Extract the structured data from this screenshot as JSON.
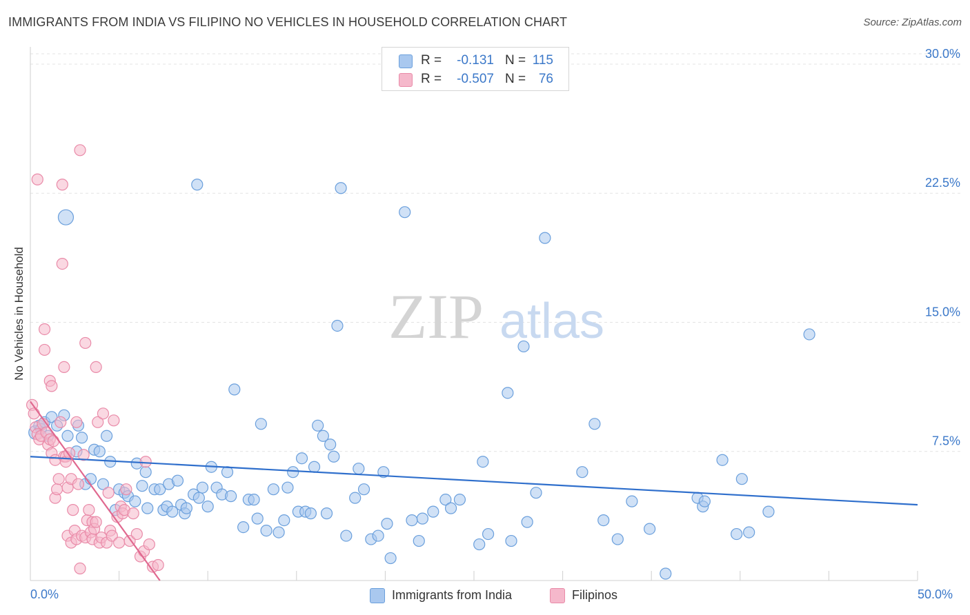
{
  "chart_data": {
    "type": "scatter",
    "title": "IMMIGRANTS FROM INDIA VS FILIPINO NO VEHICLES IN HOUSEHOLD CORRELATION CHART",
    "source": "Source: ZipAtlas.com",
    "ylabel": "No Vehicles in Household",
    "xlabel": "",
    "xlim": [
      0,
      50
    ],
    "ylim": [
      0,
      31
    ],
    "x_tick_labels": {
      "left": "0.0%",
      "right": "50.0%"
    },
    "y_ticks": [
      {
        "value": 7.5,
        "label": "7.5%"
      },
      {
        "value": 15.0,
        "label": "15.0%"
      },
      {
        "value": 22.5,
        "label": "22.5%"
      },
      {
        "value": 30.0,
        "label": "30.0%"
      }
    ],
    "watermark": {
      "part1": "ZIP",
      "part2": "atlas"
    },
    "legend": {
      "r_label": "R =",
      "n_label": "N =",
      "entries": [
        {
          "name": "Immigrants from India",
          "r": "-0.131",
          "n": "115",
          "fill": "#a9c8ef",
          "stroke": "#6a9fdc"
        },
        {
          "name": "Filipinos",
          "r": "-0.507",
          "n": "76",
          "fill": "#f5b8cb",
          "stroke": "#e98aa8"
        }
      ]
    },
    "series": [
      {
        "name": "Immigrants from India",
        "color": "#6a9fdc",
        "fill": "#a9c8ef",
        "trend": {
          "x0": 0,
          "y0": 7.2,
          "x1": 50,
          "y1": 4.4,
          "color": "#2f6fcc"
        },
        "points": [
          [
            0.3,
            8.6
          ],
          [
            0.5,
            9.0
          ],
          [
            0.6,
            8.8
          ],
          [
            0.8,
            9.2
          ],
          [
            1.0,
            8.4
          ],
          [
            1.2,
            9.5
          ],
          [
            1.5,
            9.0
          ],
          [
            1.9,
            9.6
          ],
          [
            2.1,
            8.4
          ],
          [
            2.6,
            7.5
          ],
          [
            2.7,
            9.0
          ],
          [
            2.9,
            8.3
          ],
          [
            3.1,
            5.6
          ],
          [
            3.4,
            5.9
          ],
          [
            3.6,
            7.6
          ],
          [
            3.9,
            7.5
          ],
          [
            4.1,
            5.6
          ],
          [
            4.3,
            8.4
          ],
          [
            4.5,
            6.9
          ],
          [
            4.8,
            4.1
          ],
          [
            5.0,
            5.3
          ],
          [
            5.3,
            5.1
          ],
          [
            5.5,
            4.9
          ],
          [
            5.9,
            4.6
          ],
          [
            6.0,
            6.8
          ],
          [
            6.3,
            5.5
          ],
          [
            6.5,
            6.3
          ],
          [
            6.6,
            4.2
          ],
          [
            7.0,
            5.3
          ],
          [
            7.3,
            5.3
          ],
          [
            7.5,
            4.1
          ],
          [
            7.7,
            4.3
          ],
          [
            7.8,
            5.6
          ],
          [
            8.0,
            4.0
          ],
          [
            8.3,
            5.8
          ],
          [
            8.5,
            4.4
          ],
          [
            8.7,
            3.9
          ],
          [
            8.8,
            4.2
          ],
          [
            9.2,
            5.0
          ],
          [
            9.5,
            4.8
          ],
          [
            9.7,
            5.4
          ],
          [
            9.4,
            23.0
          ],
          [
            10.0,
            4.3
          ],
          [
            10.2,
            6.6
          ],
          [
            10.5,
            5.4
          ],
          [
            10.8,
            5.0
          ],
          [
            11.1,
            6.3
          ],
          [
            11.3,
            4.9
          ],
          [
            11.5,
            11.1
          ],
          [
            12.0,
            3.1
          ],
          [
            12.3,
            4.7
          ],
          [
            12.6,
            4.7
          ],
          [
            12.8,
            3.6
          ],
          [
            13.0,
            9.1
          ],
          [
            13.3,
            2.9
          ],
          [
            13.7,
            5.3
          ],
          [
            14.0,
            2.8
          ],
          [
            14.3,
            3.5
          ],
          [
            14.5,
            5.4
          ],
          [
            14.8,
            6.3
          ],
          [
            15.1,
            4.0
          ],
          [
            15.3,
            7.1
          ],
          [
            15.5,
            4.0
          ],
          [
            15.8,
            3.9
          ],
          [
            16.0,
            6.6
          ],
          [
            16.2,
            9.0
          ],
          [
            16.5,
            8.4
          ],
          [
            16.7,
            3.9
          ],
          [
            16.9,
            7.9
          ],
          [
            17.1,
            7.2
          ],
          [
            17.3,
            14.8
          ],
          [
            17.5,
            22.8
          ],
          [
            17.8,
            2.6
          ],
          [
            18.3,
            4.8
          ],
          [
            18.5,
            6.5
          ],
          [
            18.8,
            5.3
          ],
          [
            19.2,
            2.4
          ],
          [
            19.6,
            2.6
          ],
          [
            19.9,
            6.3
          ],
          [
            20.1,
            3.3
          ],
          [
            20.3,
            1.3
          ],
          [
            21.1,
            21.4
          ],
          [
            21.5,
            3.5
          ],
          [
            21.9,
            2.3
          ],
          [
            22.1,
            3.6
          ],
          [
            22.7,
            4.0
          ],
          [
            23.4,
            4.7
          ],
          [
            23.7,
            4.2
          ],
          [
            24.2,
            4.7
          ],
          [
            25.3,
            2.1
          ],
          [
            25.5,
            6.9
          ],
          [
            25.8,
            2.7
          ],
          [
            26.9,
            10.9
          ],
          [
            27.1,
            2.3
          ],
          [
            27.8,
            13.6
          ],
          [
            28.0,
            3.4
          ],
          [
            28.5,
            5.1
          ],
          [
            29.0,
            19.9
          ],
          [
            31.1,
            6.3
          ],
          [
            31.8,
            9.1
          ],
          [
            32.3,
            3.5
          ],
          [
            33.1,
            2.4
          ],
          [
            33.9,
            4.6
          ],
          [
            34.9,
            3.0
          ],
          [
            35.8,
            0.4
          ],
          [
            37.6,
            4.8
          ],
          [
            37.9,
            4.3
          ],
          [
            38.0,
            4.6
          ],
          [
            39.0,
            7.0
          ],
          [
            39.8,
            2.7
          ],
          [
            40.1,
            5.9
          ],
          [
            40.5,
            2.8
          ],
          [
            41.6,
            4.0
          ],
          [
            43.9,
            14.3
          ],
          [
            2.0,
            21.1
          ]
        ]
      },
      {
        "name": "Filipinos",
        "color": "#e98aa8",
        "fill": "#f5b8cb",
        "trend": {
          "x0": 0,
          "y0": 10.4,
          "x1": 7.3,
          "y1": 0.0,
          "color": "#e0688f"
        },
        "points": [
          [
            0.1,
            10.2
          ],
          [
            0.2,
            9.7
          ],
          [
            0.3,
            8.9
          ],
          [
            0.4,
            8.5
          ],
          [
            0.4,
            23.3
          ],
          [
            0.5,
            8.2
          ],
          [
            0.6,
            8.4
          ],
          [
            0.7,
            9.1
          ],
          [
            0.8,
            14.6
          ],
          [
            0.8,
            13.4
          ],
          [
            0.9,
            8.6
          ],
          [
            1.0,
            7.9
          ],
          [
            1.1,
            8.2
          ],
          [
            1.1,
            11.6
          ],
          [
            1.2,
            11.3
          ],
          [
            1.2,
            7.4
          ],
          [
            1.3,
            8.1
          ],
          [
            1.4,
            7.0
          ],
          [
            1.4,
            4.8
          ],
          [
            1.5,
            5.3
          ],
          [
            1.6,
            5.9
          ],
          [
            1.7,
            9.2
          ],
          [
            1.8,
            18.4
          ],
          [
            1.8,
            23.0
          ],
          [
            1.9,
            7.2
          ],
          [
            1.9,
            12.4
          ],
          [
            2.0,
            7.2
          ],
          [
            2.0,
            6.9
          ],
          [
            2.1,
            5.4
          ],
          [
            2.1,
            2.6
          ],
          [
            2.2,
            7.4
          ],
          [
            2.3,
            5.9
          ],
          [
            2.3,
            2.2
          ],
          [
            2.4,
            4.1
          ],
          [
            2.5,
            2.9
          ],
          [
            2.6,
            2.4
          ],
          [
            2.6,
            9.2
          ],
          [
            2.7,
            5.6
          ],
          [
            2.8,
            0.7
          ],
          [
            2.8,
            25.0
          ],
          [
            2.9,
            2.6
          ],
          [
            3.0,
            7.3
          ],
          [
            3.1,
            2.5
          ],
          [
            3.1,
            13.8
          ],
          [
            3.2,
            3.5
          ],
          [
            3.3,
            4.1
          ],
          [
            3.4,
            2.8
          ],
          [
            3.5,
            3.4
          ],
          [
            3.5,
            2.4
          ],
          [
            3.6,
            3.0
          ],
          [
            3.7,
            12.4
          ],
          [
            3.7,
            3.4
          ],
          [
            3.8,
            9.2
          ],
          [
            3.9,
            2.2
          ],
          [
            4.0,
            2.5
          ],
          [
            4.1,
            9.7
          ],
          [
            4.3,
            2.2
          ],
          [
            4.4,
            5.1
          ],
          [
            4.5,
            2.9
          ],
          [
            4.6,
            2.6
          ],
          [
            4.7,
            9.3
          ],
          [
            4.9,
            3.7
          ],
          [
            5.0,
            2.2
          ],
          [
            5.1,
            4.3
          ],
          [
            5.2,
            3.9
          ],
          [
            5.3,
            4.1
          ],
          [
            5.4,
            5.3
          ],
          [
            5.6,
            2.3
          ],
          [
            5.8,
            3.9
          ],
          [
            6.0,
            2.7
          ],
          [
            6.2,
            1.4
          ],
          [
            6.4,
            1.7
          ],
          [
            6.5,
            6.9
          ],
          [
            6.7,
            2.1
          ],
          [
            6.9,
            0.8
          ],
          [
            7.2,
            0.9
          ]
        ]
      }
    ]
  }
}
